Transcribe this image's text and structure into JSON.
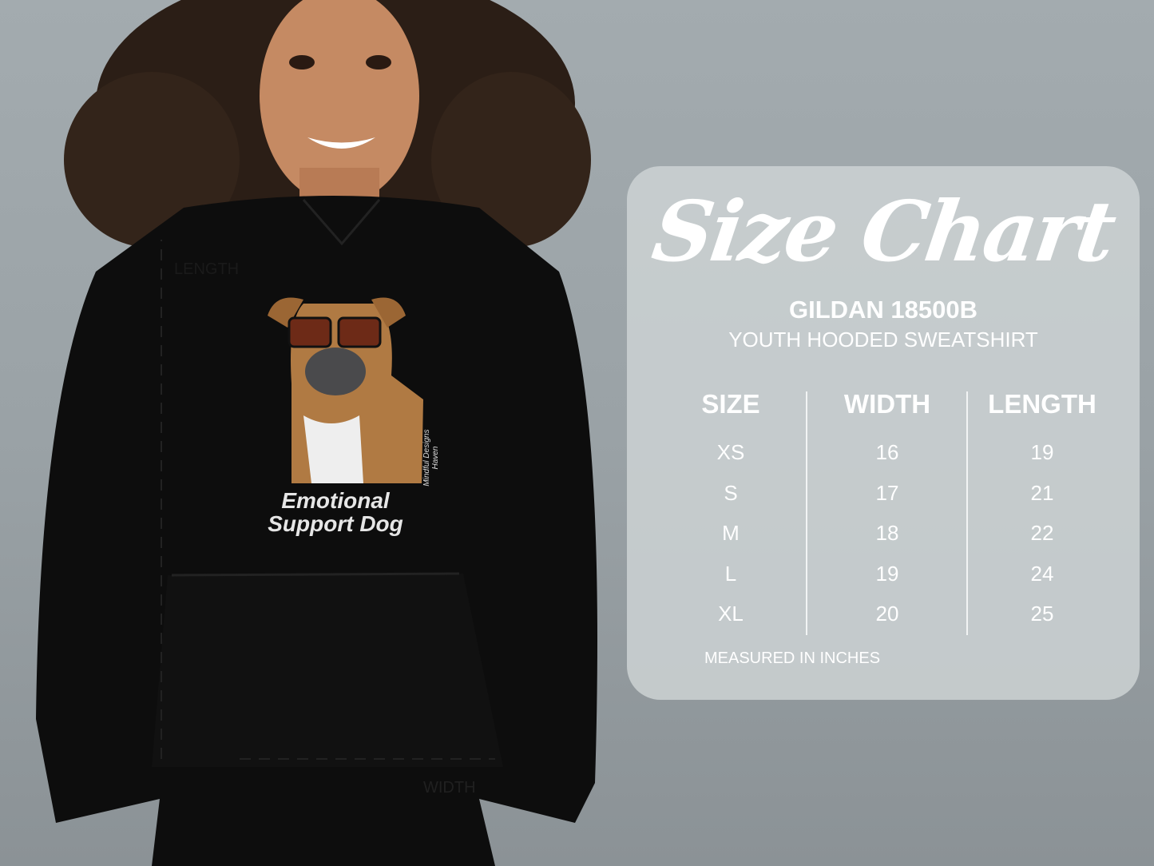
{
  "garment": {
    "print_text_line1": "Emotional",
    "print_text_line2": "Support Dog",
    "print_signature": "Mindful Designs Haven",
    "length_label": "LENGTH",
    "width_label": "WIDTH",
    "color": "#0d0d0d"
  },
  "size_chart": {
    "title": "Size Chart",
    "brand_model": "GILDAN 18500B",
    "product": "YOUTH HOODED SWEATSHIRT",
    "columns": [
      "SIZE",
      "WIDTH",
      "LENGTH"
    ],
    "rows": [
      {
        "size": "XS",
        "width": "16",
        "length": "19"
      },
      {
        "size": "S",
        "width": "17",
        "length": "21"
      },
      {
        "size": "M",
        "width": "18",
        "length": "22"
      },
      {
        "size": "L",
        "width": "19",
        "length": "24"
      },
      {
        "size": "XL",
        "width": "20",
        "length": "25"
      }
    ],
    "footnote": "MEASURED IN INCHES"
  }
}
